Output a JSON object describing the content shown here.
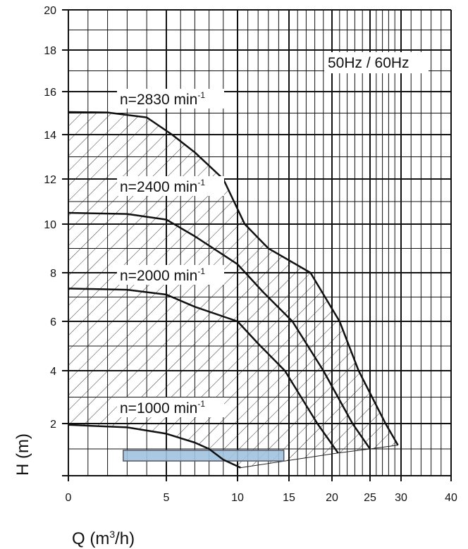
{
  "chart_data": {
    "type": "line",
    "title": "50Hz / 60Hz",
    "xlabel": "Q (m³/h)",
    "xlabel_base": "Q (m",
    "xlabel_sup": "3",
    "xlabel_end": "/h)",
    "ylabel": "H (m)",
    "xlim": [
      0,
      40
    ],
    "ylim": [
      0,
      20
    ],
    "xticks": [
      0,
      5,
      10,
      15,
      20,
      25,
      30,
      40
    ],
    "yticks": [
      2,
      4,
      6,
      8,
      10,
      12,
      14,
      16,
      18,
      20
    ],
    "grid": true,
    "series": [
      {
        "name": "n=2830 min-1",
        "label": "n=2830 min",
        "sup": "-1",
        "points": [
          [
            0,
            15.05
          ],
          [
            2,
            15.03
          ],
          [
            4,
            14.8
          ],
          [
            5.4,
            14.0
          ],
          [
            7,
            13.2
          ],
          [
            9,
            12.0
          ],
          [
            10.7,
            10.0
          ],
          [
            13,
            9.0
          ],
          [
            17.5,
            8.0
          ],
          [
            21,
            6.0
          ],
          [
            23.5,
            4.0
          ],
          [
            27.5,
            2.0
          ],
          [
            29.5,
            1.15
          ]
        ]
      },
      {
        "name": "n=2400 min-1",
        "label": "n=2400 min",
        "sup": "-1",
        "points": [
          [
            0,
            10.5
          ],
          [
            3,
            10.45
          ],
          [
            5,
            10.2
          ],
          [
            7,
            9.5
          ],
          [
            10,
            8.35
          ],
          [
            12.5,
            7.2
          ],
          [
            15.4,
            6.0
          ],
          [
            19,
            4.0
          ],
          [
            22.7,
            2.0
          ],
          [
            25,
            1.0
          ]
        ]
      },
      {
        "name": "n=2000 min-1",
        "label": "n=2000 min",
        "sup": "-1",
        "points": [
          [
            0,
            7.35
          ],
          [
            3,
            7.3
          ],
          [
            5,
            7.1
          ],
          [
            7,
            6.6
          ],
          [
            10,
            6.0
          ],
          [
            12,
            5.1
          ],
          [
            14.6,
            4.0
          ],
          [
            18.3,
            2.0
          ],
          [
            20.8,
            0.85
          ]
        ]
      },
      {
        "name": "n=1000 min-1",
        "label": "n=1000 min",
        "sup": "-1",
        "points": [
          [
            0,
            1.95
          ],
          [
            3,
            1.85
          ],
          [
            5,
            1.6
          ],
          [
            7,
            1.25
          ],
          [
            8,
            1.0
          ],
          [
            9,
            0.6
          ],
          [
            10.3,
            0.3
          ]
        ]
      }
    ],
    "operating_boundary": [
      [
        10.3,
        0.3
      ],
      [
        20.8,
        0.85
      ],
      [
        25,
        1.0
      ],
      [
        29.5,
        1.15
      ]
    ],
    "highlight_band": {
      "q": [
        2.8,
        14.5
      ],
      "h": [
        0.55,
        0.95
      ],
      "color": "#9ec3de"
    }
  }
}
